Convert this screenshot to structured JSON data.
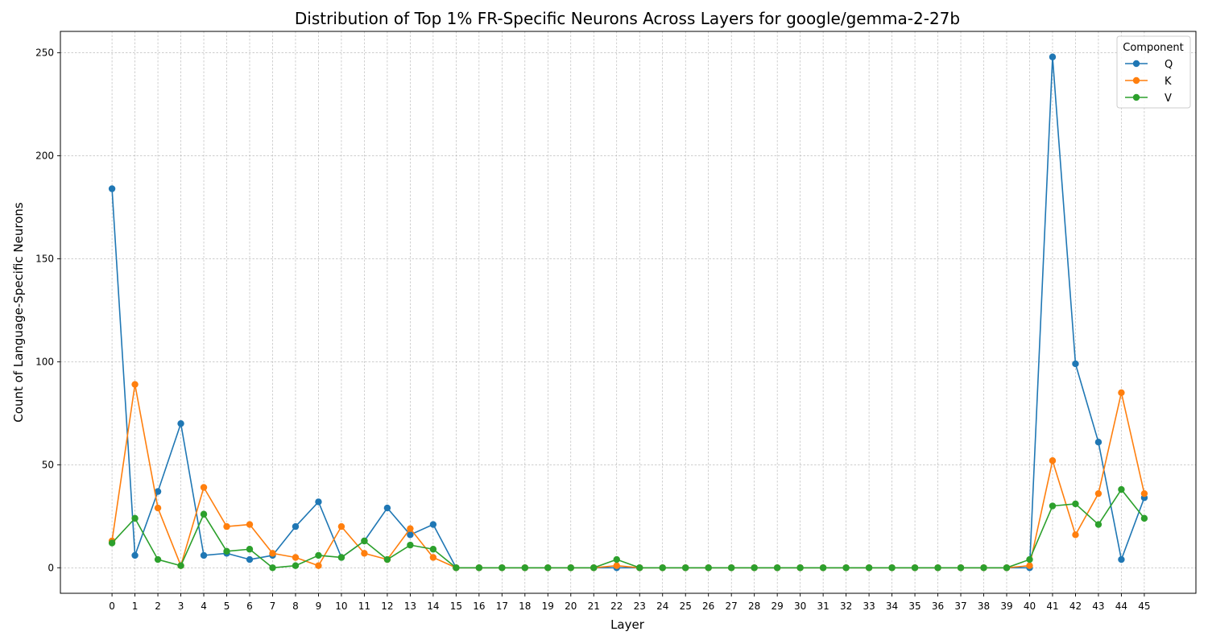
{
  "chart_data": {
    "type": "line",
    "title": "Distribution of Top 1% FR-Specific Neurons Across Layers for google/gemma-2-27b",
    "xlabel": "Layer",
    "ylabel": "Count of Language-Specific Neurons",
    "x": [
      0,
      1,
      2,
      3,
      4,
      5,
      6,
      7,
      8,
      9,
      10,
      11,
      12,
      13,
      14,
      15,
      16,
      17,
      18,
      19,
      20,
      21,
      22,
      23,
      24,
      25,
      26,
      27,
      28,
      29,
      30,
      31,
      32,
      33,
      34,
      35,
      36,
      37,
      38,
      39,
      40,
      41,
      42,
      43,
      44,
      45
    ],
    "xlim": [
      -2.25,
      47.25
    ],
    "ylim": [
      -12.4,
      260.4
    ],
    "yticks": [
      0,
      50,
      100,
      150,
      200,
      250
    ],
    "grid": true,
    "legend": {
      "title": "Component",
      "placement": "top-right"
    },
    "series": [
      {
        "name": "Q",
        "color": "#1f77b4",
        "values": [
          184,
          6,
          37,
          70,
          6,
          7,
          4,
          6,
          20,
          32,
          5,
          13,
          29,
          16,
          21,
          0,
          0,
          0,
          0,
          0,
          0,
          0,
          0,
          0,
          0,
          0,
          0,
          0,
          0,
          0,
          0,
          0,
          0,
          0,
          0,
          0,
          0,
          0,
          0,
          0,
          0,
          248,
          99,
          61,
          4,
          34
        ]
      },
      {
        "name": "K",
        "color": "#ff7f0e",
        "values": [
          13,
          89,
          29,
          1,
          39,
          20,
          21,
          7,
          5,
          1,
          20,
          7,
          4,
          19,
          5,
          0,
          0,
          0,
          0,
          0,
          0,
          0,
          1,
          0,
          0,
          0,
          0,
          0,
          0,
          0,
          0,
          0,
          0,
          0,
          0,
          0,
          0,
          0,
          0,
          0,
          1,
          52,
          16,
          36,
          85,
          36
        ]
      },
      {
        "name": "V",
        "color": "#2ca02c",
        "values": [
          12,
          24,
          4,
          1,
          26,
          8,
          9,
          0,
          1,
          6,
          5,
          13,
          4,
          11,
          9,
          0,
          0,
          0,
          0,
          0,
          0,
          0,
          4,
          0,
          0,
          0,
          0,
          0,
          0,
          0,
          0,
          0,
          0,
          0,
          0,
          0,
          0,
          0,
          0,
          0,
          4,
          30,
          31,
          21,
          38,
          24
        ]
      }
    ]
  }
}
